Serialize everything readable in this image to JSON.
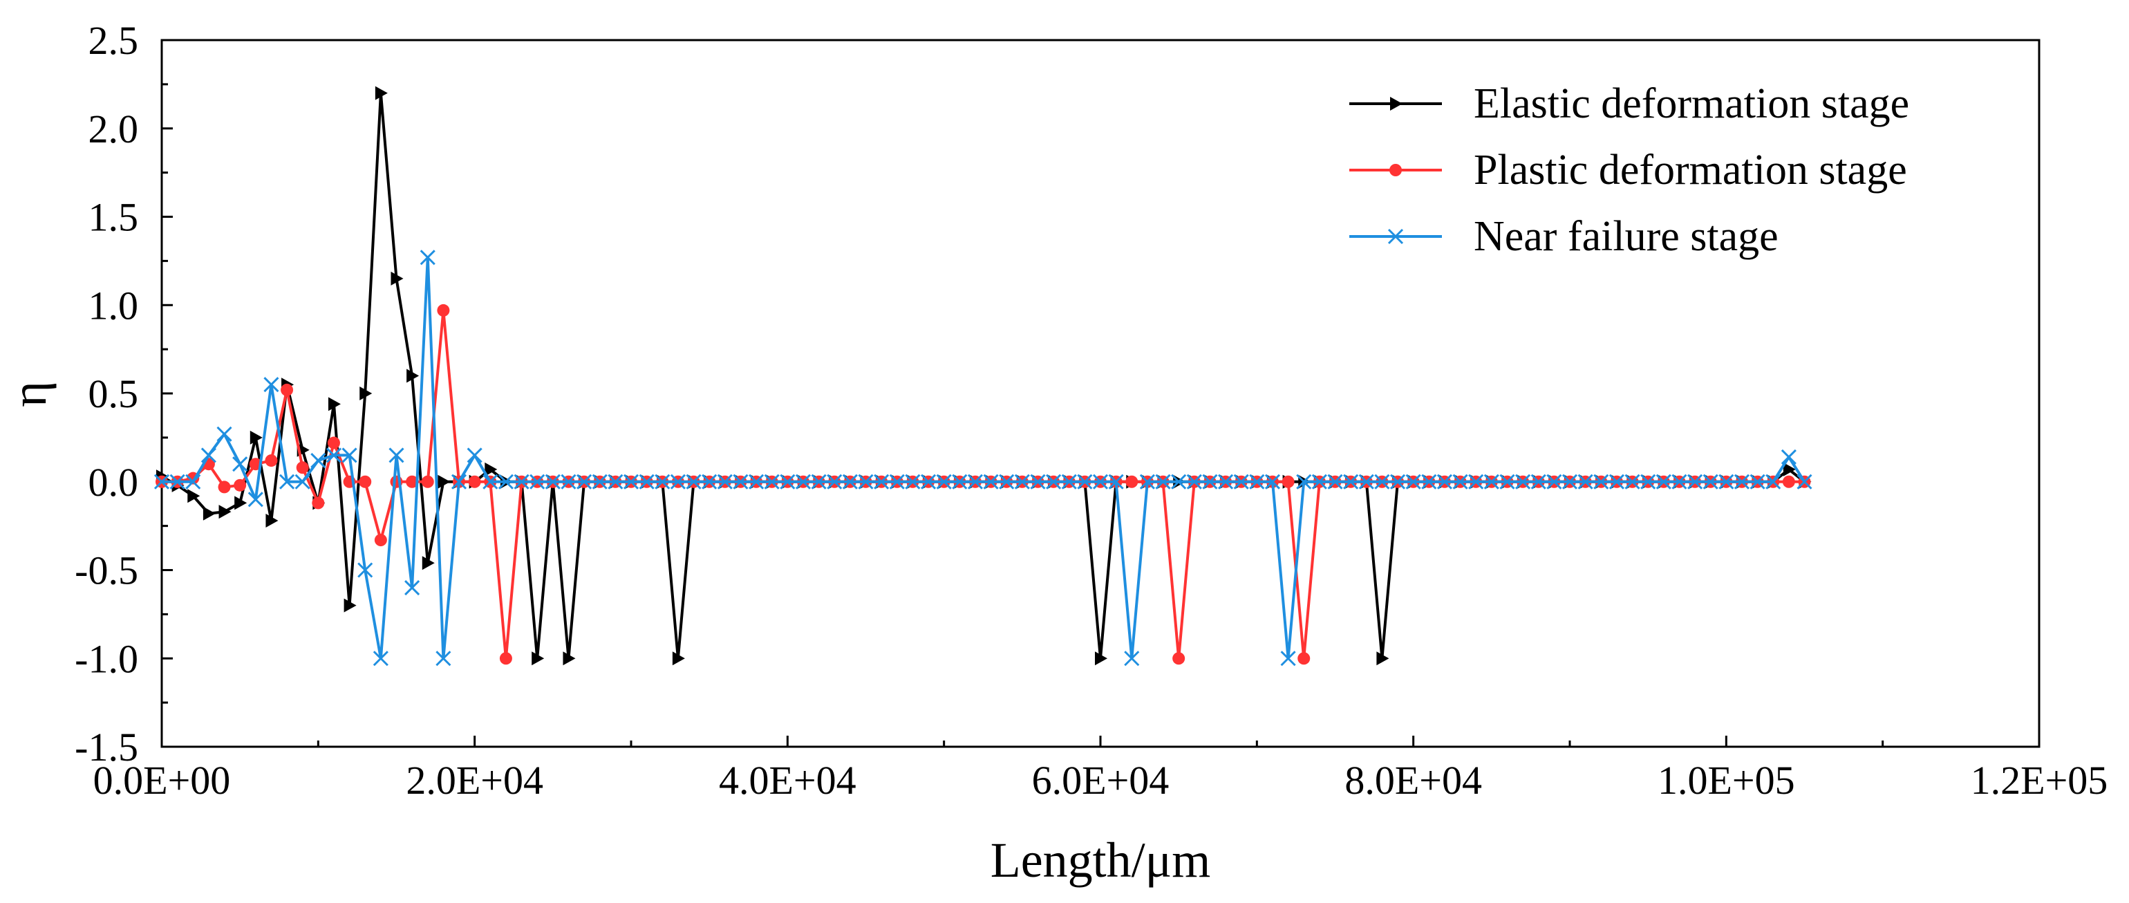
{
  "chart_data": {
    "type": "line",
    "title": "",
    "xlabel": "Length/μm",
    "ylabel": "η",
    "xlim": [
      0,
      120000
    ],
    "ylim": [
      -1.5,
      2.5
    ],
    "grid": false,
    "legend_position": "top-right",
    "x_ticks": [
      0,
      20000,
      40000,
      60000,
      80000,
      100000,
      120000
    ],
    "x_tick_labels": [
      "0.0E+00",
      "2.0E+04",
      "4.0E+04",
      "6.0E+04",
      "8.0E+04",
      "1.0E+05",
      "1.2E+05"
    ],
    "y_ticks": [
      -1.5,
      -1.0,
      -0.5,
      0.0,
      0.5,
      1.0,
      1.5,
      2.0,
      2.5
    ],
    "y_tick_labels": [
      "-1.5",
      "-1.0",
      "-0.5",
      "0.0",
      "0.5",
      "1.0",
      "1.5",
      "2.0",
      "2.5"
    ],
    "series": [
      {
        "name": "Elastic deformation stage",
        "color": "#000000",
        "marker": "triangle-right",
        "x": [
          0,
          1000,
          2000,
          3000,
          4000,
          5000,
          6000,
          7000,
          8000,
          9000,
          10000,
          11000,
          12000,
          13000,
          14000,
          15000,
          16000,
          17000,
          18000,
          19000,
          20000,
          21000,
          22000,
          23000,
          24000,
          25000,
          26000,
          27000,
          28000,
          29000,
          30000,
          31000,
          32000,
          33000,
          34000,
          35000,
          36000,
          37000,
          38000,
          39000,
          40000,
          41000,
          42000,
          43000,
          44000,
          45000,
          46000,
          47000,
          48000,
          49000,
          50000,
          51000,
          52000,
          53000,
          54000,
          55000,
          56000,
          57000,
          58000,
          59000,
          60000,
          61000,
          62000,
          63000,
          64000,
          65000,
          66000,
          67000,
          68000,
          69000,
          70000,
          71000,
          72000,
          73000,
          74000,
          75000,
          76000,
          77000,
          78000,
          79000,
          80000,
          81000,
          82000,
          83000,
          84000,
          85000,
          86000,
          87000,
          88000,
          89000,
          90000,
          91000,
          92000,
          93000,
          94000,
          95000,
          96000,
          97000,
          98000,
          99000,
          100000,
          101000,
          102000,
          103000,
          104000,
          105000
        ],
        "y": [
          0.03,
          -0.02,
          -0.08,
          -0.18,
          -0.17,
          -0.12,
          0.25,
          -0.22,
          0.55,
          0.18,
          -0.12,
          0.44,
          -0.7,
          0.5,
          2.2,
          1.15,
          0.6,
          -0.46,
          0.0,
          0.0,
          0.0,
          0.07,
          0.0,
          0.0,
          -1.0,
          0.0,
          -1.0,
          0.0,
          0.0,
          0.0,
          0.0,
          0.0,
          0.0,
          -1.0,
          0.0,
          0.0,
          0.0,
          0.0,
          0.0,
          0.0,
          0.0,
          0.0,
          0.0,
          0.0,
          0.0,
          0.0,
          0.0,
          0.0,
          0.0,
          0.0,
          0.0,
          0.0,
          0.0,
          0.0,
          0.0,
          0.0,
          0.0,
          0.0,
          0.0,
          0.0,
          -1.0,
          0.0,
          0.0,
          0.0,
          0.0,
          0.0,
          0.0,
          0.0,
          0.0,
          0.0,
          0.0,
          0.0,
          0.0,
          0.0,
          0.0,
          0.0,
          0.0,
          0.0,
          -1.0,
          0.0,
          0.0,
          0.0,
          0.0,
          0.0,
          0.0,
          0.0,
          0.0,
          0.0,
          0.0,
          0.0,
          0.0,
          0.0,
          0.0,
          0.0,
          0.0,
          0.0,
          0.0,
          0.0,
          0.0,
          0.0,
          0.0,
          0.0,
          0.0,
          0.0,
          0.07,
          0.0
        ]
      },
      {
        "name": "Plastic deformation stage",
        "color": "#ff3333",
        "marker": "circle",
        "x": [
          0,
          1000,
          2000,
          3000,
          4000,
          5000,
          6000,
          7000,
          8000,
          9000,
          10000,
          11000,
          12000,
          13000,
          14000,
          15000,
          16000,
          17000,
          18000,
          19000,
          20000,
          21000,
          22000,
          23000,
          24000,
          25000,
          26000,
          27000,
          28000,
          29000,
          30000,
          31000,
          32000,
          33000,
          34000,
          35000,
          36000,
          37000,
          38000,
          39000,
          40000,
          41000,
          42000,
          43000,
          44000,
          45000,
          46000,
          47000,
          48000,
          49000,
          50000,
          51000,
          52000,
          53000,
          54000,
          55000,
          56000,
          57000,
          58000,
          59000,
          60000,
          61000,
          62000,
          63000,
          64000,
          65000,
          66000,
          67000,
          68000,
          69000,
          70000,
          71000,
          72000,
          73000,
          74000,
          75000,
          76000,
          77000,
          78000,
          79000,
          80000,
          81000,
          82000,
          83000,
          84000,
          85000,
          86000,
          87000,
          88000,
          89000,
          90000,
          91000,
          92000,
          93000,
          94000,
          95000,
          96000,
          97000,
          98000,
          99000,
          100000,
          101000,
          102000,
          103000,
          104000,
          105000
        ],
        "y": [
          0.0,
          0.0,
          0.02,
          0.1,
          -0.03,
          -0.02,
          0.1,
          0.12,
          0.52,
          0.08,
          -0.12,
          0.22,
          0.0,
          0.0,
          -0.33,
          0.0,
          0.0,
          0.0,
          0.97,
          0.0,
          0.0,
          0.0,
          -1.0,
          0.0,
          0.0,
          0.0,
          0.0,
          0.0,
          0.0,
          0.0,
          0.0,
          0.0,
          0.0,
          0.0,
          0.0,
          0.0,
          0.0,
          0.0,
          0.0,
          0.0,
          0.0,
          0.0,
          0.0,
          0.0,
          0.0,
          0.0,
          0.0,
          0.0,
          0.0,
          0.0,
          0.0,
          0.0,
          0.0,
          0.0,
          0.0,
          0.0,
          0.0,
          0.0,
          0.0,
          0.0,
          0.0,
          0.0,
          0.0,
          0.0,
          0.0,
          -1.0,
          0.0,
          0.0,
          0.0,
          0.0,
          0.0,
          0.0,
          0.0,
          -1.0,
          0.0,
          0.0,
          0.0,
          0.0,
          0.0,
          0.0,
          0.0,
          0.0,
          0.0,
          0.0,
          0.0,
          0.0,
          0.0,
          0.0,
          0.0,
          0.0,
          0.0,
          0.0,
          0.0,
          0.0,
          0.0,
          0.0,
          0.0,
          0.0,
          0.0,
          0.0,
          0.0,
          0.0,
          0.0,
          0.0,
          0.0,
          0.0
        ]
      },
      {
        "name": "Near failure stage",
        "color": "#1f8fe0",
        "marker": "x",
        "x": [
          0,
          1000,
          2000,
          3000,
          4000,
          5000,
          6000,
          7000,
          8000,
          9000,
          10000,
          11000,
          12000,
          13000,
          14000,
          15000,
          16000,
          17000,
          18000,
          19000,
          20000,
          21000,
          22000,
          23000,
          24000,
          25000,
          26000,
          27000,
          28000,
          29000,
          30000,
          31000,
          32000,
          33000,
          34000,
          35000,
          36000,
          37000,
          38000,
          39000,
          40000,
          41000,
          42000,
          43000,
          44000,
          45000,
          46000,
          47000,
          48000,
          49000,
          50000,
          51000,
          52000,
          53000,
          54000,
          55000,
          56000,
          57000,
          58000,
          59000,
          60000,
          61000,
          62000,
          63000,
          64000,
          65000,
          66000,
          67000,
          68000,
          69000,
          70000,
          71000,
          72000,
          73000,
          74000,
          75000,
          76000,
          77000,
          78000,
          79000,
          80000,
          81000,
          82000,
          83000,
          84000,
          85000,
          86000,
          87000,
          88000,
          89000,
          90000,
          91000,
          92000,
          93000,
          94000,
          95000,
          96000,
          97000,
          98000,
          99000,
          100000,
          101000,
          102000,
          103000,
          104000,
          105000
        ],
        "y": [
          0.0,
          0.0,
          0.0,
          0.15,
          0.27,
          0.1,
          -0.1,
          0.55,
          0.0,
          0.0,
          0.12,
          0.15,
          0.15,
          -0.5,
          -1.0,
          0.15,
          -0.6,
          1.27,
          -1.0,
          0.0,
          0.15,
          0.0,
          0.0,
          0.0,
          0.0,
          0.0,
          0.0,
          0.0,
          0.0,
          0.0,
          0.0,
          0.0,
          0.0,
          0.0,
          0.0,
          0.0,
          0.0,
          0.0,
          0.0,
          0.0,
          0.0,
          0.0,
          0.0,
          0.0,
          0.0,
          0.0,
          0.0,
          0.0,
          0.0,
          0.0,
          0.0,
          0.0,
          0.0,
          0.0,
          0.0,
          0.0,
          0.0,
          0.0,
          0.0,
          0.0,
          0.0,
          0.0,
          -1.0,
          0.0,
          0.0,
          0.0,
          0.0,
          0.0,
          0.0,
          0.0,
          0.0,
          0.0,
          -1.0,
          0.0,
          0.0,
          0.0,
          0.0,
          0.0,
          0.0,
          0.0,
          0.0,
          0.0,
          0.0,
          0.0,
          0.0,
          0.0,
          0.0,
          0.0,
          0.0,
          0.0,
          0.0,
          0.0,
          0.0,
          0.0,
          0.0,
          0.0,
          0.0,
          0.0,
          0.0,
          0.0,
          0.0,
          0.0,
          0.0,
          0.0,
          0.14,
          0.0
        ]
      }
    ]
  }
}
